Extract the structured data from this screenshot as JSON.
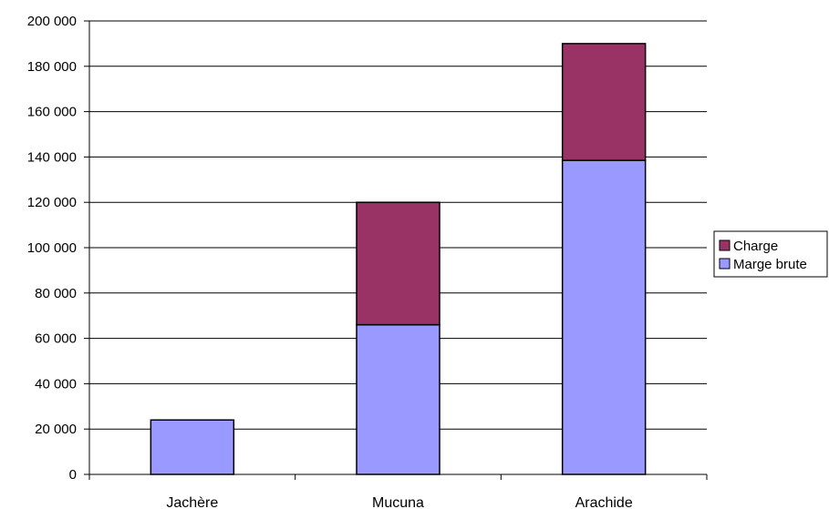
{
  "chart_data": {
    "type": "bar",
    "stacked": true,
    "categories": [
      "Jachère",
      "Mucuna",
      "Arachide"
    ],
    "series": [
      {
        "name": "Marge brute",
        "values": [
          24000,
          66000,
          138500
        ],
        "color": "#9999ff"
      },
      {
        "name": "Charge",
        "values": [
          0,
          54000,
          51500
        ],
        "color": "#993366"
      }
    ],
    "ylim": [
      0,
      200000
    ],
    "yticks": [
      {
        "value": 0,
        "label": "0"
      },
      {
        "value": 20000,
        "label": "20 000"
      },
      {
        "value": 40000,
        "label": "40 000"
      },
      {
        "value": 60000,
        "label": "60 000"
      },
      {
        "value": 80000,
        "label": "80 000"
      },
      {
        "value": 100000,
        "label": "100 000"
      },
      {
        "value": 120000,
        "label": "120 000"
      },
      {
        "value": 140000,
        "label": "140 000"
      },
      {
        "value": 160000,
        "label": "160 000"
      },
      {
        "value": 180000,
        "label": "180 000"
      },
      {
        "value": 200000,
        "label": "200 000"
      }
    ],
    "grid": true,
    "legend": {
      "placement": "right",
      "entries": [
        {
          "name": "Charge",
          "color": "#993366"
        },
        {
          "name": "Marge brute",
          "color": "#9999ff"
        }
      ]
    }
  }
}
